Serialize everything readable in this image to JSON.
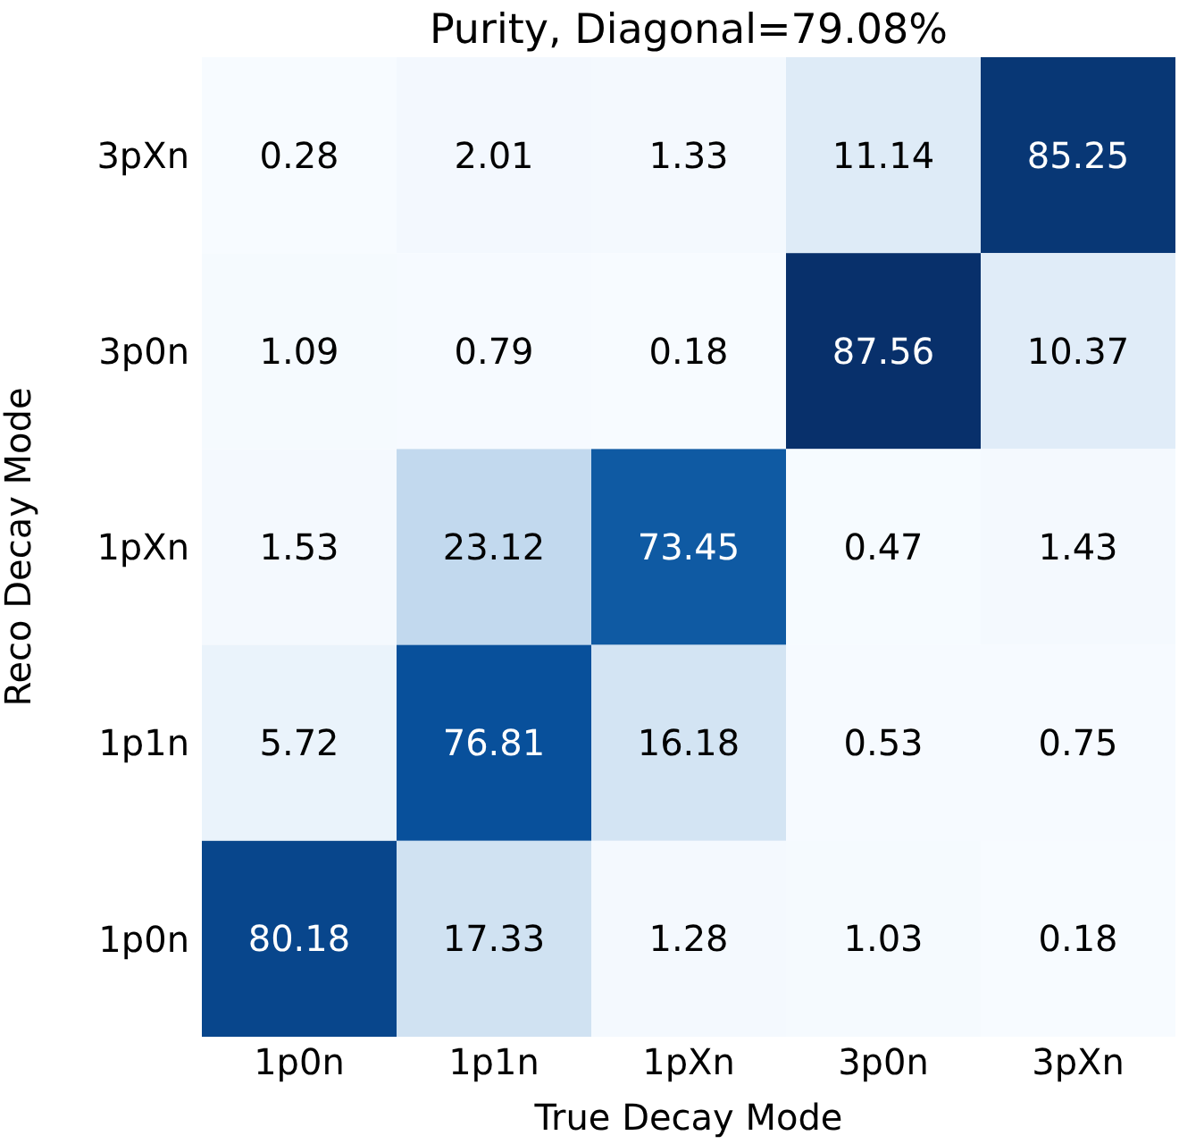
{
  "chart_data": {
    "type": "heatmap",
    "title": "Purity, Diagonal=79.08%",
    "xlabel": "True Decay Mode",
    "ylabel": "Reco Decay Mode",
    "categories": [
      "1p0n",
      "1p1n",
      "1pXn",
      "3p0n",
      "3pXn"
    ],
    "y_categories": [
      "3pXn",
      "3p0n",
      "1pXn",
      "1p1n",
      "1p0n"
    ],
    "cells": [
      [
        0.28,
        2.01,
        1.33,
        11.14,
        85.25
      ],
      [
        1.09,
        0.79,
        0.18,
        87.56,
        10.37
      ],
      [
        1.53,
        23.12,
        73.45,
        0.47,
        1.43
      ],
      [
        5.72,
        76.81,
        16.18,
        0.53,
        0.75
      ],
      [
        80.18,
        17.33,
        1.28,
        1.03,
        0.18
      ]
    ],
    "data_labels": true
  }
}
